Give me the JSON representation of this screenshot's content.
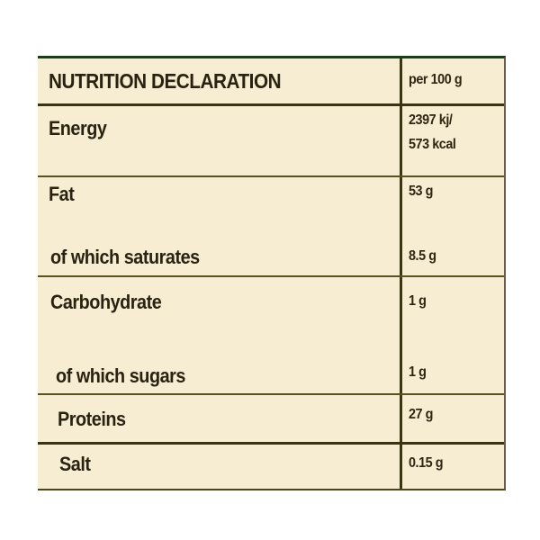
{
  "table": {
    "header": {
      "title": "NUTRITION DECLARATION",
      "per": "per 100 g"
    },
    "rows": [
      {
        "label": "Energy",
        "value": "2397 kj/",
        "value2": "573 kcal"
      },
      {
        "label": "Fat",
        "value": "53 g"
      },
      {
        "label": "of which saturates",
        "value": "8.5 g"
      },
      {
        "label": "Carbohydrate",
        "value": "1 g"
      },
      {
        "label": "of which sugars",
        "value": "1 g"
      },
      {
        "label": "Proteins",
        "value": "27 g"
      },
      {
        "label": "Salt",
        "value": "0.15 g"
      }
    ]
  },
  "colors": {
    "background": "#f6edd2",
    "text": "#2a2210",
    "rules": "#3a3312"
  }
}
